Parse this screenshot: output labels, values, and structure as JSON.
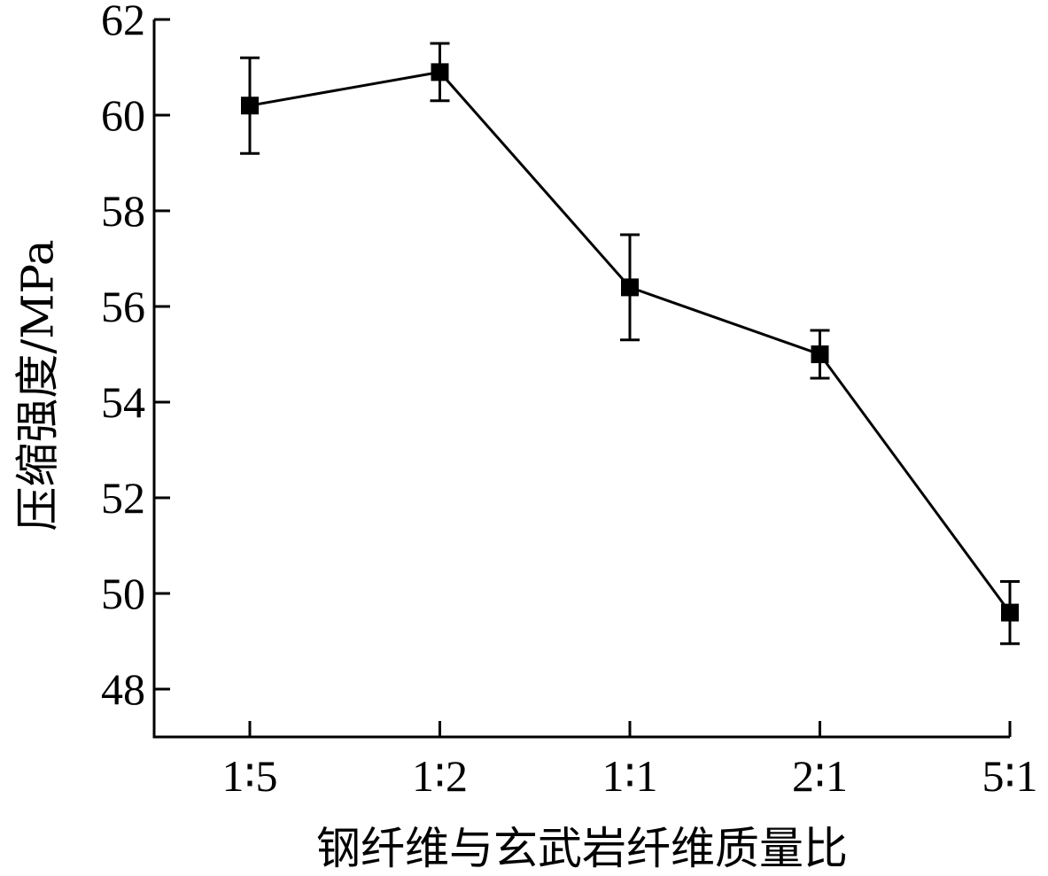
{
  "chart_data": {
    "type": "line",
    "title": "",
    "xlabel": "钢纤维与玄武岩纤维质量比",
    "ylabel": "压缩强度/MPa",
    "categories": [
      "1∶5",
      "1∶2",
      "1∶1",
      "2∶1",
      "5∶1"
    ],
    "series": [
      {
        "values": [
          60.2,
          60.9,
          56.4,
          55.0,
          49.6
        ],
        "error": [
          1.0,
          0.6,
          1.1,
          0.5,
          0.65
        ]
      }
    ],
    "ylim": [
      47,
      62
    ],
    "yticks": [
      48,
      50,
      52,
      54,
      56,
      58,
      60,
      62
    ],
    "grid": false,
    "legend": "none",
    "colors": {
      "line": "#000000",
      "marker": "#000000",
      "axis": "#000000"
    }
  }
}
